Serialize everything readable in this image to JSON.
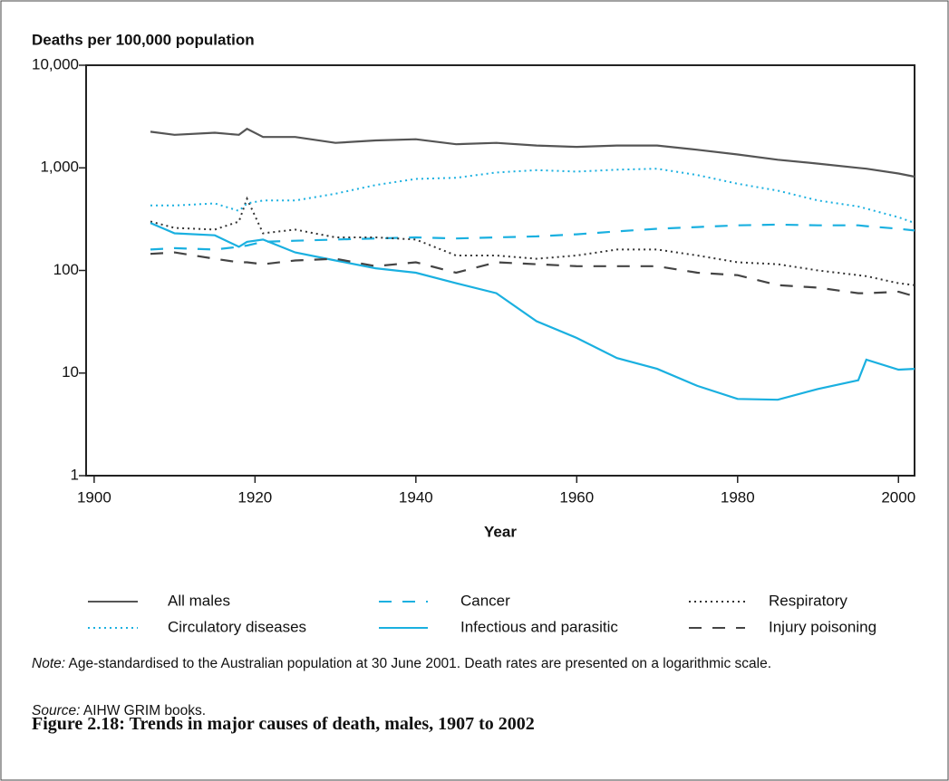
{
  "chart_data": {
    "type": "line",
    "title": "Figure 2.18: Trends in major causes of death, males, 1907 to 2002",
    "y_label": "Deaths per 100,000 population",
    "x_label": "Year",
    "note": {
      "label": "Note:",
      "text": "Age-standardised to the Australian population at 30 June 2001. Death rates are presented on a logarithmic scale."
    },
    "source": {
      "label": "Source:",
      "text": "AIHW GRIM books."
    },
    "log_y": true,
    "x": [
      1907,
      1910,
      1915,
      1918,
      1919,
      1921,
      1925,
      1930,
      1935,
      1940,
      1945,
      1950,
      1955,
      1960,
      1965,
      1970,
      1975,
      1980,
      1985,
      1990,
      1995,
      1996,
      2000,
      2002
    ],
    "xlim": [
      1899,
      2002
    ],
    "xticks": [
      1900,
      1920,
      1940,
      1960,
      1980,
      2000
    ],
    "ylim": [
      1,
      10000
    ],
    "yticks": [
      1,
      10,
      100,
      {
        "value": 1000,
        "label": "1,000"
      },
      {
        "value": 10000,
        "label": "10,000"
      }
    ],
    "series": [
      {
        "name": "All males",
        "color": "#555555",
        "style": "solid",
        "values": [
          2250,
          2100,
          2200,
          2100,
          2400,
          2000,
          2000,
          1750,
          1850,
          1900,
          1700,
          1750,
          1650,
          1600,
          1650,
          1650,
          1500,
          1350,
          1200,
          1100,
          1000,
          980,
          880,
          820
        ]
      },
      {
        "name": "Cancer",
        "color": "#1ab0e0",
        "style": "dashed",
        "values": [
          160,
          165,
          160,
          170,
          175,
          190,
          195,
          200,
          205,
          210,
          205,
          210,
          215,
          225,
          240,
          255,
          265,
          275,
          280,
          275,
          275,
          270,
          255,
          245
        ]
      },
      {
        "name": "Respiratory",
        "color": "#333333",
        "style": "dotted",
        "values": [
          300,
          260,
          250,
          300,
          500,
          230,
          250,
          210,
          210,
          200,
          140,
          140,
          130,
          140,
          160,
          160,
          140,
          120,
          115,
          100,
          90,
          88,
          75,
          72
        ]
      },
      {
        "name": "Circulatory diseases",
        "color": "#1ab0e0",
        "style": "dotted",
        "values": [
          430,
          430,
          450,
          380,
          450,
          480,
          480,
          560,
          680,
          780,
          800,
          900,
          950,
          920,
          960,
          980,
          850,
          700,
          600,
          480,
          420,
          400,
          330,
          290
        ]
      },
      {
        "name": "Infectious and parasitic",
        "color": "#1ab0e0",
        "style": "solid",
        "values": [
          290,
          230,
          220,
          170,
          190,
          200,
          150,
          125,
          105,
          95,
          75,
          60,
          32,
          22,
          14,
          11,
          7.5,
          5.6,
          5.5,
          7,
          8.5,
          13.5,
          10.8,
          11
        ]
      },
      {
        "name": "Injury poisoning",
        "color": "#444444",
        "style": "dashed",
        "values": [
          145,
          150,
          130,
          120,
          120,
          115,
          125,
          130,
          110,
          120,
          95,
          120,
          115,
          110,
          110,
          110,
          95,
          90,
          72,
          68,
          60,
          60,
          62,
          56
        ]
      }
    ]
  }
}
